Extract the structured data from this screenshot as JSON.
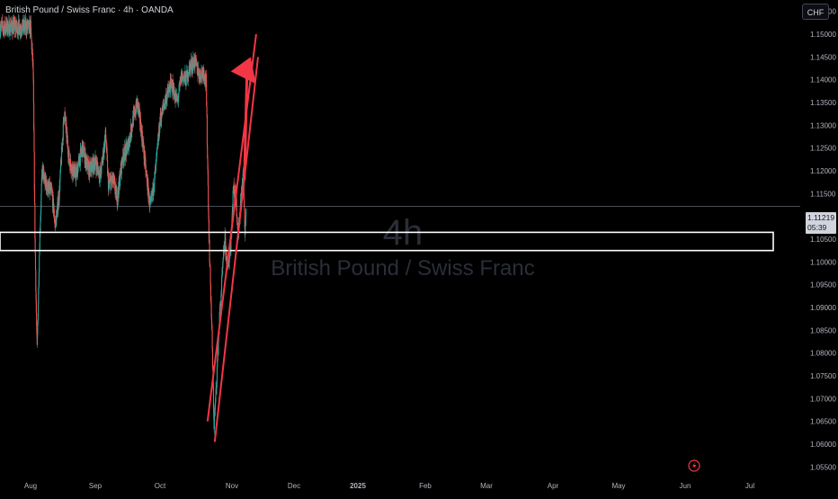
{
  "header": {
    "title": "British Pound / Swiss Franc · 4h · OANDA",
    "currency": "CHF"
  },
  "watermark": {
    "interval": "4h",
    "symbol_name": "British Pound / Swiss Franc"
  },
  "last_price": {
    "value": "1.11219",
    "countdown": "05:39"
  },
  "colors": {
    "background": "#000000",
    "candle_up": "#26a69a",
    "candle_down": "#ef5350",
    "channel": "#f23645",
    "zone_border": "#ffffff",
    "axis_text": "#b2b5be"
  },
  "icons": {
    "lightning": "lightning-icon"
  },
  "chart_data": {
    "type": "candlestick",
    "y_ticks": [
      "1.15500",
      "1.15000",
      "1.14500",
      "1.14000",
      "1.13500",
      "1.13000",
      "1.12500",
      "1.12000",
      "1.11500",
      "1.11000",
      "1.10500",
      "1.10000",
      "1.09500",
      "1.09000",
      "1.08500",
      "1.08000",
      "1.07500",
      "1.07000",
      "1.06500",
      "1.06000",
      "1.05500"
    ],
    "x_ticks": [
      "Aug",
      "Sep",
      "Oct",
      "Nov",
      "Dec",
      "2025",
      "Feb",
      "Mar",
      "Apr",
      "May",
      "Jun",
      "Jul"
    ],
    "ylim": [
      1.0525,
      1.1575
    ],
    "price_path": [
      [
        0,
        1.1515
      ],
      [
        0.04,
        1.142
      ],
      [
        0.07,
        1.103
      ],
      [
        0.1,
        1.08
      ],
      [
        0.14,
        1.105
      ],
      [
        0.18,
        1.1205
      ],
      [
        0.22,
        1.1175
      ],
      [
        0.28,
        1.116
      ],
      [
        0.33,
        1.115
      ],
      [
        0.38,
        1.108
      ],
      [
        0.44,
        1.1145
      ],
      [
        0.52,
        1.133
      ],
      [
        0.6,
        1.122
      ],
      [
        0.7,
        1.119
      ],
      [
        0.8,
        1.125
      ],
      [
        0.9,
        1.12
      ],
      [
        1.0,
        1.122
      ],
      [
        1.08,
        1.119
      ],
      [
        1.16,
        1.128
      ],
      [
        1.2,
        1.117
      ],
      [
        1.27,
        1.118
      ],
      [
        1.34,
        1.114
      ],
      [
        1.42,
        1.123
      ],
      [
        1.5,
        1.125
      ],
      [
        1.58,
        1.131
      ],
      [
        1.65,
        1.135
      ],
      [
        1.72,
        1.128
      ],
      [
        1.78,
        1.12
      ],
      [
        1.85,
        1.1115
      ],
      [
        1.93,
        1.12
      ],
      [
        2.0,
        1.131
      ],
      [
        2.08,
        1.136
      ],
      [
        2.16,
        1.139
      ],
      [
        2.24,
        1.135
      ],
      [
        2.3,
        1.141
      ],
      [
        2.36,
        1.14
      ],
      [
        2.42,
        1.143
      ],
      [
        2.48,
        1.144
      ],
      [
        2.55,
        1.141
      ],
      [
        2.6,
        1.142
      ],
      [
        2.64,
        1.1395
      ],
      [
        2.68,
        1.106
      ],
      [
        2.72,
        1.085
      ],
      [
        2.75,
        1.064
      ],
      [
        2.78,
        1.072
      ],
      [
        2.82,
        1.086
      ],
      [
        2.86,
        1.096
      ],
      [
        2.9,
        1.105
      ],
      [
        2.94,
        1.098
      ],
      [
        2.98,
        1.103
      ],
      [
        3.02,
        1.116
      ],
      [
        3.06,
        1.115
      ],
      [
        3.1,
        1.106
      ],
      [
        3.14,
        1.113
      ],
      [
        3.18,
        1.119
      ],
      [
        3.21,
        1.1065
      ],
      [
        3.23,
        1.1122
      ]
    ],
    "support_zone": {
      "low": 1.1025,
      "high": 1.1065
    },
    "current_price": 1.11219,
    "ascending_channel": {
      "upper": [
        [
          2.66,
          1.065
        ],
        [
          3.39,
          1.15
        ]
      ],
      "lower": [
        [
          2.76,
          1.0605
        ],
        [
          3.42,
          1.145
        ]
      ]
    },
    "projection_arrow": {
      "from": [
        3.2,
        1.118
      ],
      "to": [
        3.3,
        1.145
      ]
    }
  }
}
